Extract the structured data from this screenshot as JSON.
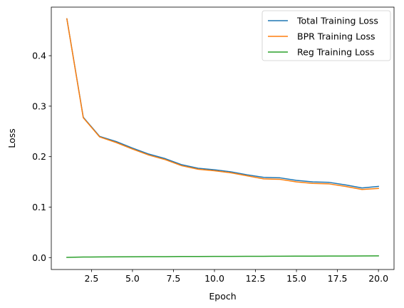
{
  "chart_data": {
    "type": "line",
    "title": "",
    "xlabel": "Epoch",
    "ylabel": "Loss",
    "xlim": [
      0.05,
      20.95
    ],
    "ylim": [
      -0.0236,
      0.4962
    ],
    "xticks": [
      2.5,
      5.0,
      7.5,
      10.0,
      12.5,
      15.0,
      17.5,
      20.0
    ],
    "xtick_labels": [
      "2.5",
      "5.0",
      "7.5",
      "10.0",
      "12.5",
      "15.0",
      "17.5",
      "20.0"
    ],
    "yticks": [
      0.0,
      0.1,
      0.2,
      0.3,
      0.4
    ],
    "ytick_labels": [
      "0.0",
      "0.1",
      "0.2",
      "0.3",
      "0.4"
    ],
    "grid": false,
    "legend_position": "top-right",
    "x": [
      1,
      2,
      3,
      4,
      5,
      6,
      7,
      8,
      9,
      10,
      11,
      12,
      13,
      14,
      15,
      16,
      17,
      18,
      19,
      20
    ],
    "series": [
      {
        "name": "Total Training Loss",
        "color": "#1f77b4",
        "values": [
          0.473,
          0.278,
          0.24,
          0.23,
          0.217,
          0.205,
          0.196,
          0.184,
          0.177,
          0.174,
          0.17,
          0.164,
          0.159,
          0.158,
          0.153,
          0.15,
          0.149,
          0.144,
          0.138,
          0.141
        ]
      },
      {
        "name": "BPR Training Loss",
        "color": "#ff7f0e",
        "values": [
          0.473,
          0.277,
          0.239,
          0.228,
          0.215,
          0.203,
          0.194,
          0.182,
          0.175,
          0.172,
          0.168,
          0.162,
          0.156,
          0.155,
          0.15,
          0.147,
          0.146,
          0.141,
          0.135,
          0.137
        ]
      },
      {
        "name": "Reg Training Loss",
        "color": "#2ca02c",
        "values": [
          0.0005,
          0.0011,
          0.0013,
          0.0015,
          0.0016,
          0.0018,
          0.0019,
          0.0021,
          0.0022,
          0.0023,
          0.0024,
          0.0025,
          0.0026,
          0.0027,
          0.0028,
          0.0029,
          0.003,
          0.0031,
          0.0032,
          0.0034
        ]
      }
    ]
  }
}
